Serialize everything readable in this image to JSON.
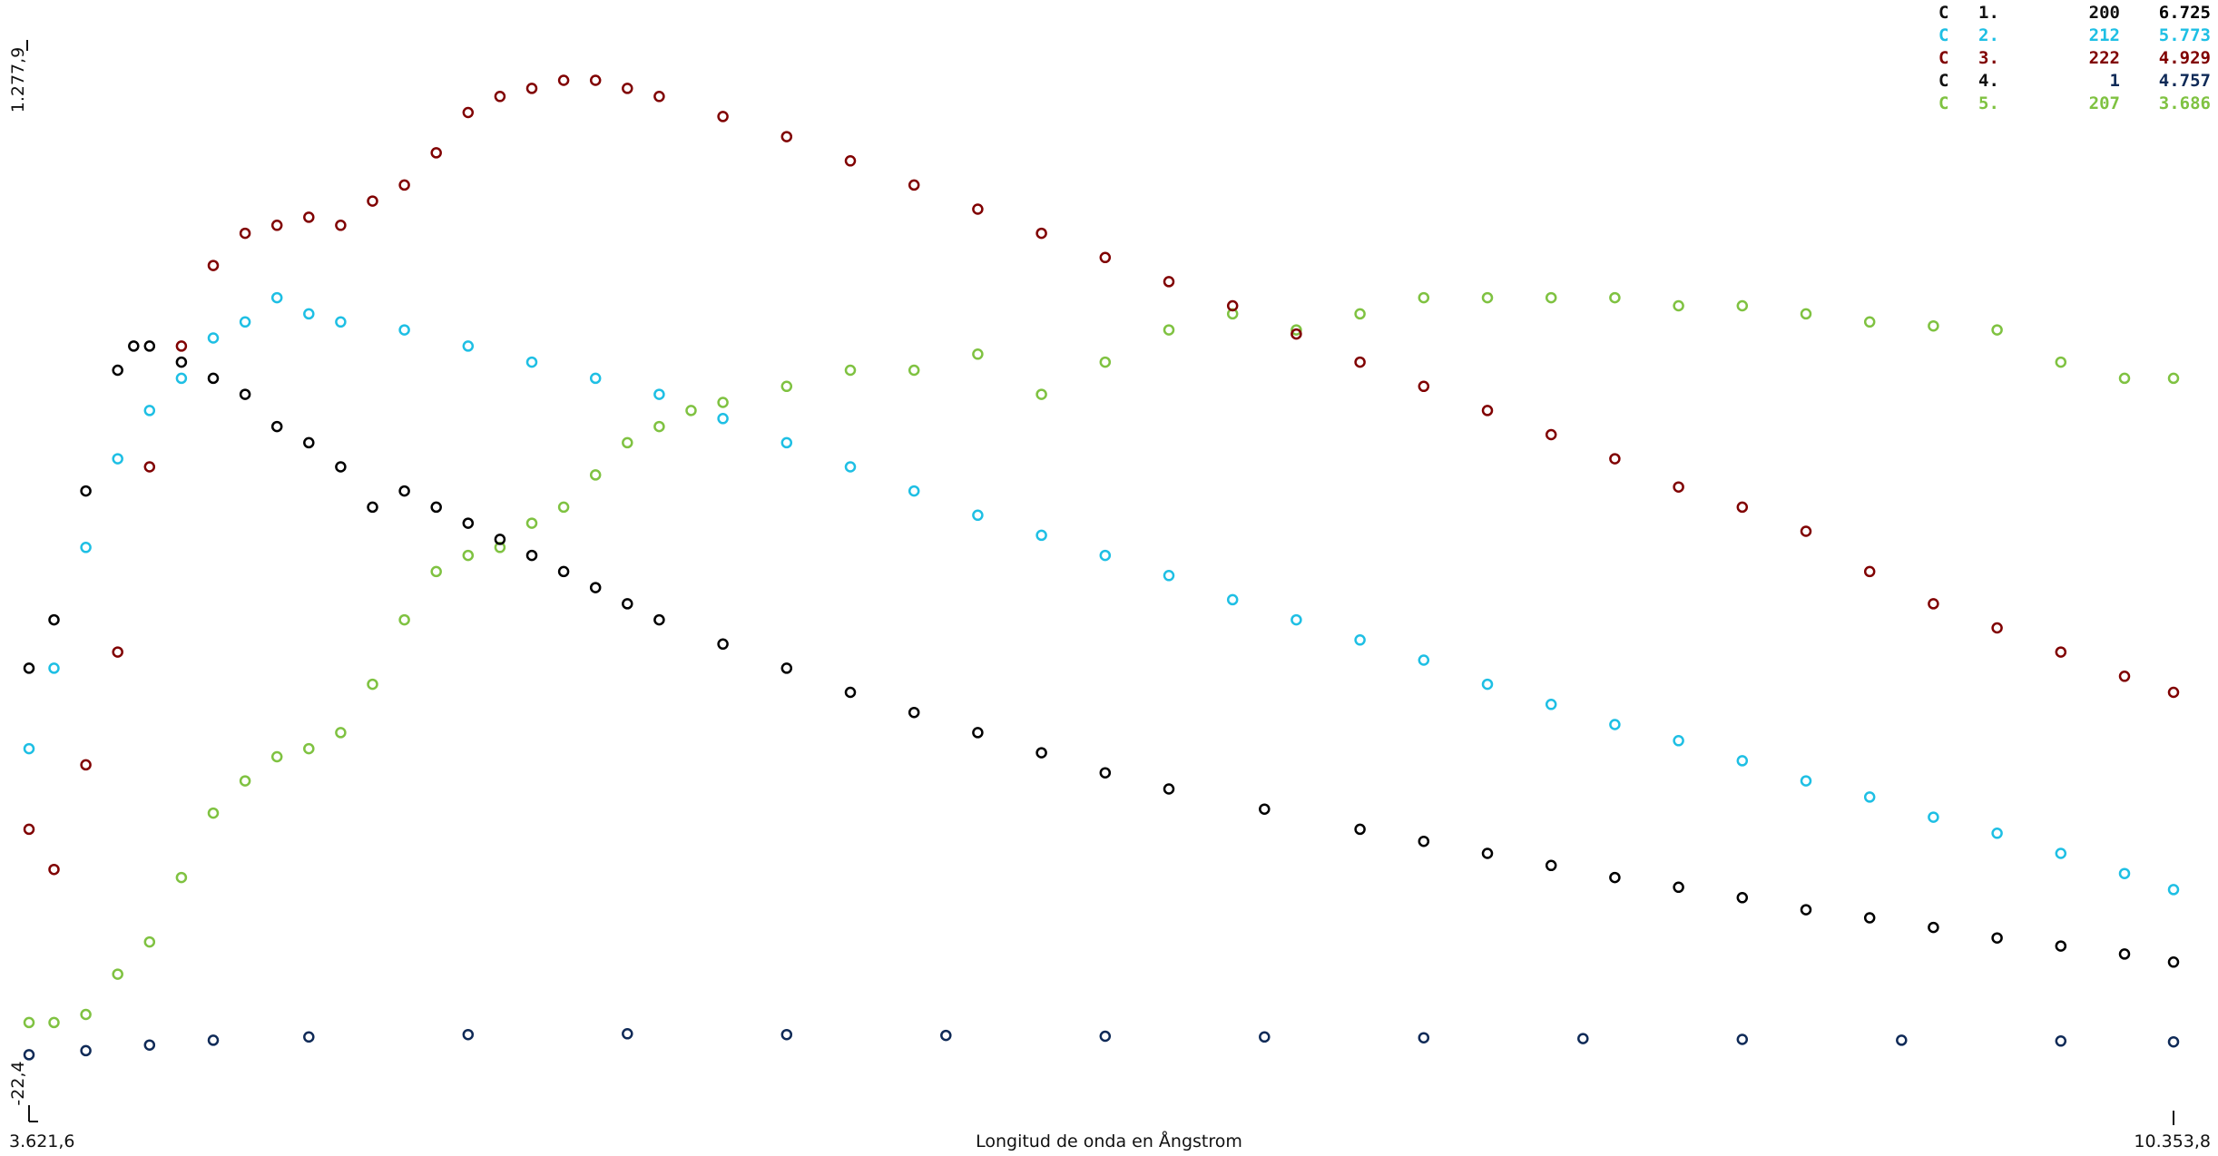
{
  "chart_data": {
    "type": "scatter",
    "title": "",
    "xlabel": "Longitud de onda en Ångstrom",
    "ylabel": "",
    "xlim": [
      3621.6,
      10353.8
    ],
    "ylim": [
      -22.4,
      1277.9
    ],
    "x_tick_labels": [
      "3.621,6",
      "10.353,8"
    ],
    "y_tick_labels": [
      "-22,4",
      "1.277,9"
    ],
    "grid": false,
    "legend_position": "top-right",
    "legend": [
      {
        "prefix": "C",
        "index": "1.",
        "count": "200",
        "value": "6.725",
        "color": "#000000"
      },
      {
        "prefix": "C",
        "index": "2.",
        "count": "212",
        "value": "5.773",
        "color": "#1ebfe4"
      },
      {
        "prefix": "C",
        "index": "3.",
        "count": "222",
        "value": "4.929",
        "color": "#800000"
      },
      {
        "prefix": "C",
        "index": "4.",
        "count": "1",
        "value": "4.757",
        "color": "#0f2a57"
      },
      {
        "prefix": "C",
        "index": "5.",
        "count": "207",
        "value": "3.686",
        "color": "#7fc241"
      }
    ],
    "series": [
      {
        "color": "#000000",
        "marker": "open-circle",
        "x": [
          3621.6,
          3700,
          3800,
          3900,
          3950,
          4000,
          4100,
          4200,
          4300,
          4400,
          4500,
          4600,
          4700,
          4800,
          4900,
          5000,
          5100,
          5200,
          5300,
          5400,
          5500,
          5600,
          5800,
          6000,
          6200,
          6400,
          6600,
          6800,
          7000,
          7200,
          7500,
          7800,
          8000,
          8200,
          8400,
          8600,
          8800,
          9000,
          9200,
          9400,
          9600,
          9800,
          10000,
          10200,
          10353.8
        ],
        "y": [
          500,
          560,
          720,
          870,
          900,
          900,
          880,
          860,
          840,
          800,
          780,
          750,
          700,
          720,
          700,
          680,
          660,
          640,
          620,
          600,
          580,
          560,
          530,
          500,
          470,
          445,
          420,
          395,
          370,
          350,
          325,
          300,
          285,
          270,
          255,
          240,
          228,
          215,
          200,
          190,
          178,
          165,
          155,
          145,
          135
        ]
      },
      {
        "color": "#1ebfe4",
        "marker": "open-circle",
        "x": [
          3621.6,
          3700,
          3800,
          3900,
          4000,
          4100,
          4200,
          4300,
          4400,
          4500,
          4600,
          4800,
          5000,
          5200,
          5400,
          5600,
          5800,
          6000,
          6200,
          6400,
          6600,
          6800,
          7000,
          7200,
          7400,
          7600,
          7800,
          8000,
          8200,
          8400,
          8600,
          8800,
          9000,
          9200,
          9400,
          9600,
          9800,
          10000,
          10200,
          10353.8
        ],
        "y": [
          400,
          500,
          650,
          760,
          820,
          860,
          910,
          930,
          960,
          940,
          930,
          920,
          900,
          880,
          860,
          840,
          810,
          780,
          750,
          720,
          690,
          665,
          640,
          615,
          585,
          560,
          535,
          510,
          480,
          455,
          430,
          410,
          385,
          360,
          340,
          315,
          295,
          270,
          245,
          225
        ]
      },
      {
        "color": "#800000",
        "marker": "open-circle",
        "x": [
          3621.6,
          3700,
          3800,
          3900,
          4000,
          4100,
          4200,
          4300,
          4400,
          4500,
          4600,
          4700,
          4800,
          4900,
          5000,
          5100,
          5200,
          5300,
          5400,
          5500,
          5600,
          5800,
          6000,
          6200,
          6400,
          6600,
          6800,
          7000,
          7200,
          7400,
          7600,
          7800,
          8000,
          8200,
          8400,
          8600,
          8800,
          9000,
          9200,
          9400,
          9600,
          9800,
          10000,
          10200,
          10353.8
        ],
        "y": [
          300,
          250,
          380,
          520,
          750,
          900,
          1000,
          1040,
          1050,
          1060,
          1050,
          1080,
          1100,
          1140,
          1190,
          1210,
          1220,
          1230,
          1230,
          1220,
          1210,
          1185,
          1160,
          1130,
          1100,
          1070,
          1040,
          1010,
          980,
          950,
          915,
          880,
          850,
          820,
          790,
          760,
          725,
          700,
          670,
          620,
          580,
          550,
          520,
          490,
          470
        ]
      },
      {
        "color": "#0f2a57",
        "marker": "open-circle",
        "x": [
          3621.6,
          3800,
          4000,
          4200,
          4500,
          5000,
          5500,
          6000,
          6500,
          7000,
          7500,
          8000,
          8500,
          9000,
          9500,
          10000,
          10353.8
        ],
        "y": [
          20,
          25,
          32,
          38,
          42,
          45,
          46,
          45,
          44,
          43,
          42,
          41,
          40,
          39,
          38,
          37,
          36
        ]
      },
      {
        "color": "#7fc241",
        "marker": "open-circle",
        "x": [
          3621.6,
          3700,
          3800,
          3900,
          4000,
          4100,
          4200,
          4300,
          4400,
          4500,
          4600,
          4700,
          4800,
          4900,
          5000,
          5100,
          5200,
          5300,
          5400,
          5500,
          5600,
          5700,
          5800,
          6000,
          6200,
          6400,
          6600,
          6800,
          7000,
          7200,
          7400,
          7600,
          7800,
          8000,
          8200,
          8400,
          8600,
          8800,
          9000,
          9200,
          9400,
          9600,
          9800,
          10000,
          10200,
          10353.8
        ],
        "y": [
          60,
          60,
          70,
          120,
          160,
          240,
          320,
          360,
          390,
          400,
          420,
          480,
          560,
          620,
          640,
          650,
          680,
          700,
          740,
          780,
          800,
          820,
          830,
          850,
          870,
          870,
          890,
          840,
          880,
          920,
          940,
          920,
          940,
          960,
          960,
          960,
          960,
          950,
          950,
          940,
          930,
          925,
          920,
          880,
          860,
          860
        ]
      }
    ]
  }
}
